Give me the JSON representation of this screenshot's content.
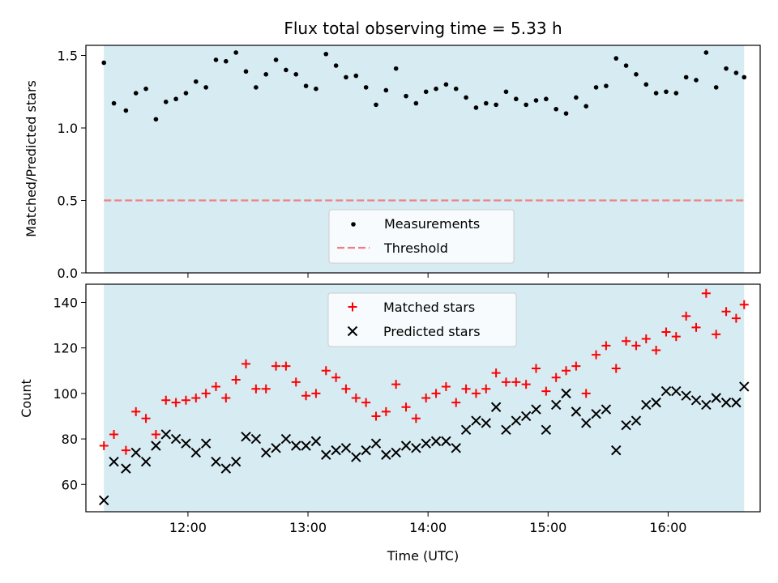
{
  "chart_data": [
    {
      "type": "scatter",
      "title": "Flux total observing time = 5.33 h",
      "xlabel": "",
      "ylabel": "Matched/Predicted stars",
      "ylim": [
        0,
        1.57
      ],
      "yticks": [
        "0.0",
        "0.5",
        "1.0",
        "1.5"
      ],
      "shaded_span": [
        "11:18",
        "16:38"
      ],
      "shade_color": "#add8e6",
      "legend_location": "lower center",
      "series": [
        {
          "name": "Measurements",
          "marker": "dot",
          "color": "#000000",
          "x": [
            "11:18",
            "11:23",
            "11:29",
            "11:34",
            "11:39",
            "11:44",
            "11:49",
            "11:54",
            "11:59",
            "12:04",
            "12:09",
            "12:14",
            "12:19",
            "12:24",
            "12:29",
            "12:34",
            "12:39",
            "12:44",
            "12:49",
            "12:54",
            "12:59",
            "13:04",
            "13:09",
            "13:14",
            "13:19",
            "13:24",
            "13:29",
            "13:34",
            "13:39",
            "13:44",
            "13:49",
            "13:54",
            "13:59",
            "14:04",
            "14:09",
            "14:14",
            "14:19",
            "14:24",
            "14:29",
            "14:34",
            "14:39",
            "14:44",
            "14:49",
            "14:54",
            "14:59",
            "15:04",
            "15:09",
            "15:14",
            "15:19",
            "15:24",
            "15:29",
            "15:34",
            "15:39",
            "15:44",
            "15:49",
            "15:54",
            "15:59",
            "16:04",
            "16:09",
            "16:14",
            "16:19",
            "16:24",
            "16:29",
            "16:34",
            "16:38"
          ],
          "y": [
            1.45,
            1.17,
            1.12,
            1.24,
            1.27,
            1.06,
            1.18,
            1.2,
            1.24,
            1.32,
            1.28,
            1.47,
            1.46,
            1.52,
            1.39,
            1.28,
            1.37,
            1.47,
            1.4,
            1.37,
            1.29,
            1.27,
            1.51,
            1.43,
            1.35,
            1.36,
            1.28,
            1.16,
            1.26,
            1.41,
            1.22,
            1.17,
            1.25,
            1.27,
            1.3,
            1.27,
            1.21,
            1.14,
            1.17,
            1.16,
            1.25,
            1.2,
            1.16,
            1.19,
            1.2,
            1.13,
            1.1,
            1.21,
            1.15,
            1.28,
            1.29,
            1.48,
            1.43,
            1.37,
            1.3,
            1.24,
            1.25,
            1.24,
            1.35,
            1.33,
            1.52,
            1.28,
            1.41,
            1.38,
            1.35
          ]
        },
        {
          "name": "Threshold",
          "type": "line",
          "style": "dashed",
          "color": "#f08080",
          "x": [
            "11:18",
            "16:38"
          ],
          "y": [
            0.5,
            0.5
          ]
        }
      ]
    },
    {
      "type": "scatter",
      "title": "",
      "xlabel": "Time (UTC)",
      "ylabel": "Count",
      "ylim": [
        48,
        148
      ],
      "yticks": [
        "60",
        "80",
        "100",
        "120",
        "140"
      ],
      "xticks": [
        "12:00",
        "13:00",
        "14:00",
        "15:00",
        "16:00"
      ],
      "shaded_span": [
        "11:18",
        "16:38"
      ],
      "shade_color": "#add8e6",
      "legend_location": "upper center",
      "series": [
        {
          "name": "Matched stars",
          "marker": "plus",
          "color": "#ff0000",
          "x": [
            "11:18",
            "11:23",
            "11:29",
            "11:34",
            "11:39",
            "11:44",
            "11:49",
            "11:54",
            "11:59",
            "12:04",
            "12:09",
            "12:14",
            "12:19",
            "12:24",
            "12:29",
            "12:34",
            "12:39",
            "12:44",
            "12:49",
            "12:54",
            "12:59",
            "13:04",
            "13:09",
            "13:14",
            "13:19",
            "13:24",
            "13:29",
            "13:34",
            "13:39",
            "13:44",
            "13:49",
            "13:54",
            "13:59",
            "14:04",
            "14:09",
            "14:14",
            "14:19",
            "14:24",
            "14:29",
            "14:34",
            "14:39",
            "14:44",
            "14:49",
            "14:54",
            "14:59",
            "15:04",
            "15:09",
            "15:14",
            "15:19",
            "15:24",
            "15:29",
            "15:34",
            "15:39",
            "15:44",
            "15:49",
            "15:54",
            "15:59",
            "16:04",
            "16:09",
            "16:14",
            "16:19",
            "16:24",
            "16:29",
            "16:34",
            "16:38"
          ],
          "y": [
            77,
            82,
            75,
            92,
            89,
            82,
            97,
            96,
            97,
            98,
            100,
            103,
            98,
            106,
            113,
            102,
            102,
            112,
            112,
            105,
            99,
            100,
            110,
            107,
            102,
            98,
            96,
            90,
            92,
            104,
            94,
            89,
            98,
            100,
            103,
            96,
            102,
            100,
            102,
            109,
            105,
            105,
            104,
            111,
            101,
            107,
            110,
            112,
            100,
            117,
            121,
            111,
            123,
            121,
            124,
            119,
            127,
            125,
            134,
            129,
            144,
            126,
            136,
            133,
            139
          ]
        },
        {
          "name": "Predicted stars",
          "marker": "x",
          "color": "#000000",
          "x": [
            "11:18",
            "11:23",
            "11:29",
            "11:34",
            "11:39",
            "11:44",
            "11:49",
            "11:54",
            "11:59",
            "12:04",
            "12:09",
            "12:14",
            "12:19",
            "12:24",
            "12:29",
            "12:34",
            "12:39",
            "12:44",
            "12:49",
            "12:54",
            "12:59",
            "13:04",
            "13:09",
            "13:14",
            "13:19",
            "13:24",
            "13:29",
            "13:34",
            "13:39",
            "13:44",
            "13:49",
            "13:54",
            "13:59",
            "14:04",
            "14:09",
            "14:14",
            "14:19",
            "14:24",
            "14:29",
            "14:34",
            "14:39",
            "14:44",
            "14:49",
            "14:54",
            "14:59",
            "15:04",
            "15:09",
            "15:14",
            "15:19",
            "15:24",
            "15:29",
            "15:34",
            "15:39",
            "15:44",
            "15:49",
            "15:54",
            "15:59",
            "16:04",
            "16:09",
            "16:14",
            "16:19",
            "16:24",
            "16:29",
            "16:34",
            "16:38"
          ],
          "y": [
            53,
            70,
            67,
            74,
            70,
            77,
            82,
            80,
            78,
            74,
            78,
            70,
            67,
            70,
            81,
            80,
            74,
            76,
            80,
            77,
            77,
            79,
            73,
            75,
            76,
            72,
            75,
            78,
            73,
            74,
            77,
            76,
            78,
            79,
            79,
            76,
            84,
            88,
            87,
            94,
            84,
            88,
            90,
            93,
            84,
            95,
            100,
            92,
            87,
            91,
            93,
            75,
            86,
            88,
            95,
            96,
            101,
            101,
            99,
            97,
            95,
            98,
            96,
            96,
            103
          ]
        }
      ]
    }
  ]
}
